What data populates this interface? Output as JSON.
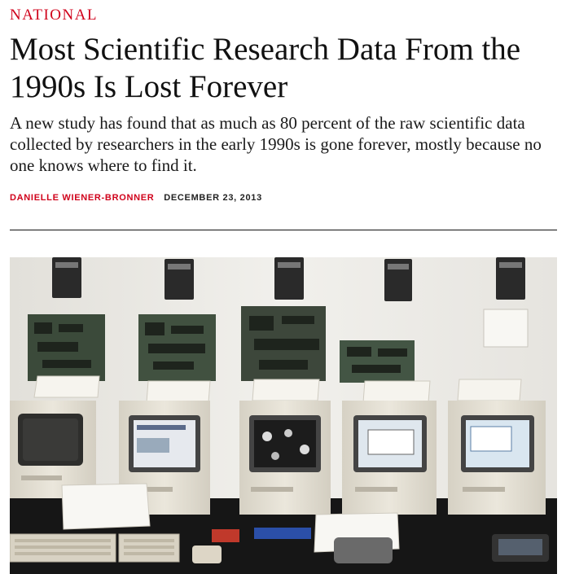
{
  "article": {
    "section": "NATIONAL",
    "headline": "Most Scientific Research Data From the 1990s Is Lost Forever",
    "dek": "A new study has found that as much as 80 percent of the raw scientific data collected by researchers in the early 1990s is gone forever, mostly because no one knows where to find it.",
    "author": "DANIELLE WIENER-BRONNER",
    "date": "DECEMBER 23, 2013"
  },
  "photo": {
    "subject": "vintage-macintosh-computers-exhibit",
    "colors": {
      "wall": "#ecebe7",
      "case": "#e4dfd2",
      "table": "#161616",
      "board": "#3b4a3a"
    }
  }
}
